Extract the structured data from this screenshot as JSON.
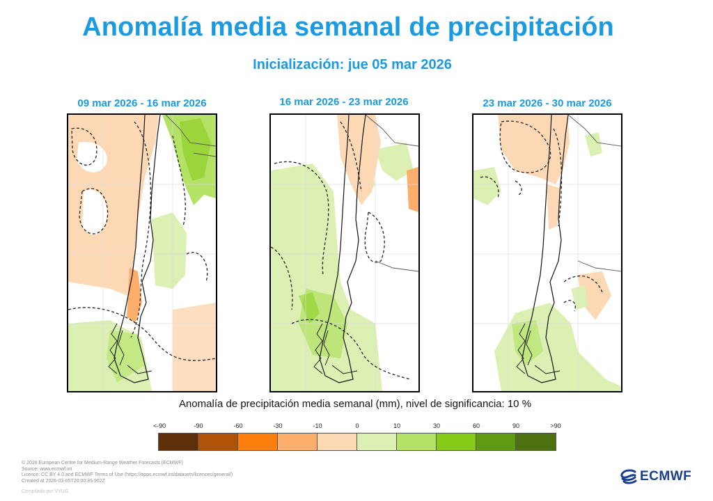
{
  "title": "Anomalía media semanal de precipitación",
  "subtitle": "Inicialización: jue 05 mar 2026",
  "panels": [
    {
      "label": "09 mar 2026 - 16 mar 2026",
      "tone": "dry-north-wet-east"
    },
    {
      "label": "16 mar 2026 - 23 mar 2026",
      "tone": "wet-south"
    },
    {
      "label": "23 mar 2026 - 30 mar 2026",
      "tone": "mixed-weak"
    }
  ],
  "colorbar": {
    "caption": "Anomalía de precipitación media semanal (mm), nivel de significancia: 10 %",
    "ticks": [
      "<-90",
      "-90",
      "-60",
      "-30",
      "-10",
      "0",
      "10",
      "30",
      "60",
      "90",
      ">90"
    ],
    "colors": [
      "#5e2f08",
      "#b05208",
      "#ff7f0e",
      "#fdae6b",
      "#fdd8b5",
      "#dbf0b2",
      "#b3e266",
      "#86cb17",
      "#5e9b13",
      "#4d7010"
    ]
  },
  "footer": {
    "lines": [
      "© 2026 European Centre for Medium-Range Weather Forecasts (ECMWF)",
      "Source: www.ecmwf.int",
      "Licence: CC BY 4.0 and ECMWF Terms of Use (https://apps.ecmwf.int/datasets/licences/general/)",
      "Created at 2026-03-05T20:00:35.902Z"
    ],
    "compiled": "Compilado por VVUG"
  },
  "logo": {
    "text": "ECMWF",
    "color": "#1a3d8c"
  }
}
